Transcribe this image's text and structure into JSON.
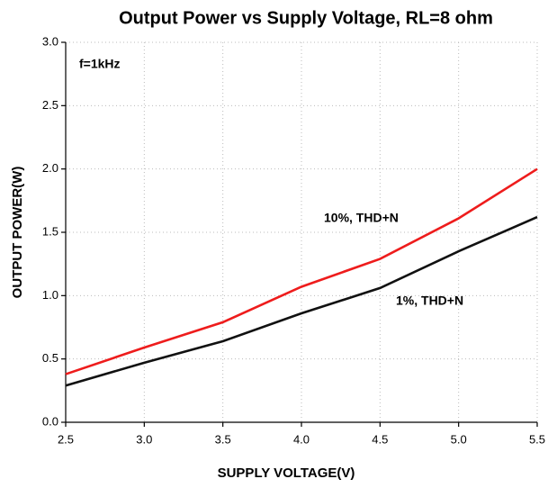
{
  "chart_data": {
    "type": "line",
    "title": "Output Power vs Supply Voltage, RL=8 ohm",
    "x_label": "SUPPLY VOLTAGE(V)",
    "y_label": "OUTPUT POWER(W)",
    "annotation": "f=1kHz",
    "x": [
      2.5,
      3.0,
      3.5,
      4.0,
      4.5,
      5.0,
      5.5
    ],
    "series": [
      {
        "name": "10%, THD+N",
        "color": "#ee1c1c",
        "values": [
          0.38,
          0.59,
          0.79,
          1.07,
          1.29,
          1.61,
          2.0
        ]
      },
      {
        "name": "1%, THD+N",
        "color": "#111111",
        "values": [
          0.29,
          0.47,
          0.64,
          0.86,
          1.06,
          1.35,
          1.62
        ]
      }
    ],
    "xlim": [
      2.5,
      5.5
    ],
    "xticks": [
      2.5,
      {
        "value": 3,
        "label": "3.0"
      },
      3.5,
      {
        "value": 4,
        "label": "4.0"
      },
      4.5,
      {
        "value": 5,
        "label": "5.0"
      },
      5.5
    ],
    "ylim": [
      0,
      3
    ],
    "yticks": [
      {
        "value": 0,
        "label": "0.0"
      },
      0.5,
      {
        "value": 1,
        "label": "1.0"
      },
      1.5,
      {
        "value": 2,
        "label": "2.0"
      },
      2.5,
      {
        "value": 3,
        "label": "3.0"
      }
    ],
    "grid": true
  }
}
